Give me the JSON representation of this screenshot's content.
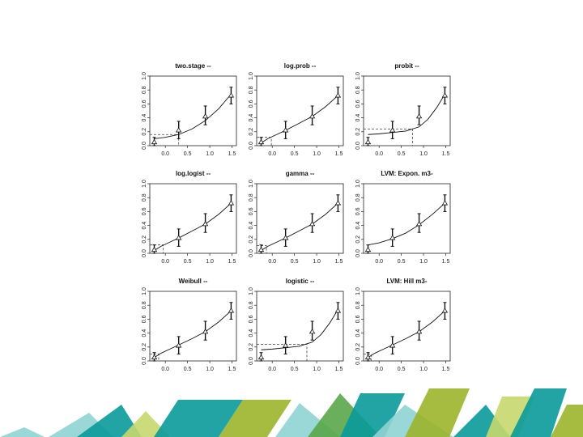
{
  "chart_data": [
    {
      "type": "line",
      "title": "two.stage --",
      "xlim": [
        -0.35,
        1.6
      ],
      "ylim": [
        0,
        1.0
      ],
      "xticks": [
        "0.0",
        "0.5",
        "1.0",
        "1.5"
      ],
      "yticks": [
        "0.0",
        "0.2",
        "0.4",
        "0.6",
        "0.8",
        "1.0"
      ],
      "x_tick_values": [
        0,
        0.5,
        1,
        1.5
      ],
      "y_tick_values": [
        0,
        0.2,
        0.4,
        0.6,
        0.8,
        1.0
      ],
      "observed": {
        "x": [
          -0.25,
          0.3,
          0.9,
          1.48
        ],
        "y": [
          0.05,
          0.22,
          0.42,
          0.72
        ],
        "lower": [
          0.0,
          0.1,
          0.3,
          0.6
        ],
        "upper": [
          0.12,
          0.35,
          0.57,
          0.84
        ]
      },
      "fitted_curve": {
        "x": [
          -0.25,
          0.0,
          0.3,
          0.6,
          0.9,
          1.2,
          1.48
        ],
        "y": [
          0.1,
          0.12,
          0.16,
          0.24,
          0.36,
          0.53,
          0.74
        ]
      },
      "bmd": {
        "bmr_level": 0.16,
        "bmd": 0.3
      }
    },
    {
      "type": "line",
      "title": "log.prob --",
      "xlim": [
        -0.35,
        1.6
      ],
      "ylim": [
        0,
        1.0
      ],
      "xticks": [
        "0.0",
        "0.5",
        "1.0",
        "1.5"
      ],
      "yticks": [
        "0.0",
        "0.2",
        "0.4",
        "0.6",
        "0.8",
        "1.0"
      ],
      "x_tick_values": [
        0,
        0.5,
        1,
        1.5
      ],
      "y_tick_values": [
        0,
        0.2,
        0.4,
        0.6,
        0.8,
        1.0
      ],
      "observed": {
        "x": [
          -0.25,
          0.3,
          0.9,
          1.48
        ],
        "y": [
          0.05,
          0.22,
          0.42,
          0.72
        ],
        "lower": [
          0.0,
          0.1,
          0.3,
          0.6
        ],
        "upper": [
          0.12,
          0.35,
          0.57,
          0.84
        ]
      },
      "fitted_curve": {
        "x": [
          -0.25,
          -0.1,
          0.1,
          0.3,
          0.6,
          0.9,
          1.2,
          1.48
        ],
        "y": [
          0.04,
          0.1,
          0.16,
          0.22,
          0.32,
          0.42,
          0.56,
          0.72
        ]
      },
      "bmd": {
        "bmr_level": 0.12,
        "bmd": -0.02
      }
    },
    {
      "type": "line",
      "title": "probit --",
      "xlim": [
        -0.35,
        1.6
      ],
      "ylim": [
        0,
        1.0
      ],
      "xticks": [
        "0.0",
        "0.5",
        "1.0",
        "1.5"
      ],
      "yticks": [
        "0.0",
        "0.2",
        "0.4",
        "0.6",
        "0.8",
        "1.0"
      ],
      "x_tick_values": [
        0,
        0.5,
        1,
        1.5
      ],
      "y_tick_values": [
        0,
        0.2,
        0.4,
        0.6,
        0.8,
        1.0
      ],
      "observed": {
        "x": [
          -0.25,
          0.3,
          0.9,
          1.48
        ],
        "y": [
          0.05,
          0.22,
          0.42,
          0.72
        ],
        "lower": [
          0.0,
          0.1,
          0.3,
          0.6
        ],
        "upper": [
          0.12,
          0.35,
          0.57,
          0.84
        ]
      },
      "fitted_curve": {
        "x": [
          -0.25,
          0.0,
          0.3,
          0.6,
          0.9,
          1.1,
          1.3,
          1.48
        ],
        "y": [
          0.16,
          0.17,
          0.19,
          0.21,
          0.27,
          0.38,
          0.55,
          0.74
        ]
      },
      "bmd": {
        "bmr_level": 0.24,
        "bmd": 0.75
      }
    },
    {
      "type": "line",
      "title": "log.logist --",
      "xlim": [
        -0.35,
        1.6
      ],
      "ylim": [
        0,
        1.0
      ],
      "xticks": [
        "0.0",
        "0.5",
        "1.0",
        "1.5"
      ],
      "yticks": [
        "0.0",
        "0.2",
        "0.4",
        "0.6",
        "0.8",
        "1.0"
      ],
      "x_tick_values": [
        0,
        0.5,
        1,
        1.5
      ],
      "y_tick_values": [
        0,
        0.2,
        0.4,
        0.6,
        0.8,
        1.0
      ],
      "observed": {
        "x": [
          -0.25,
          0.3,
          0.9,
          1.48
        ],
        "y": [
          0.05,
          0.22,
          0.42,
          0.72
        ],
        "lower": [
          0.0,
          0.1,
          0.3,
          0.6
        ],
        "upper": [
          0.12,
          0.35,
          0.57,
          0.84
        ]
      },
      "fitted_curve": {
        "x": [
          -0.25,
          -0.1,
          0.1,
          0.3,
          0.6,
          0.9,
          1.2,
          1.48
        ],
        "y": [
          0.04,
          0.1,
          0.16,
          0.22,
          0.32,
          0.42,
          0.56,
          0.72
        ]
      },
      "bmd": {
        "bmr_level": 0.12,
        "bmd": -0.05
      }
    },
    {
      "type": "line",
      "title": "gamma --",
      "xlim": [
        -0.35,
        1.6
      ],
      "ylim": [
        0,
        1.0
      ],
      "xticks": [
        "0.0",
        "0.5",
        "1.0",
        "1.5"
      ],
      "yticks": [
        "0.0",
        "0.2",
        "0.4",
        "0.6",
        "0.8",
        "1.0"
      ],
      "x_tick_values": [
        0,
        0.5,
        1,
        1.5
      ],
      "y_tick_values": [
        0,
        0.2,
        0.4,
        0.6,
        0.8,
        1.0
      ],
      "observed": {
        "x": [
          -0.25,
          0.3,
          0.9,
          1.48
        ],
        "y": [
          0.05,
          0.22,
          0.42,
          0.72
        ],
        "lower": [
          0.0,
          0.1,
          0.3,
          0.6
        ],
        "upper": [
          0.12,
          0.35,
          0.57,
          0.84
        ]
      },
      "fitted_curve": {
        "x": [
          -0.25,
          -0.1,
          0.1,
          0.3,
          0.6,
          0.9,
          1.2,
          1.48
        ],
        "y": [
          0.04,
          0.1,
          0.16,
          0.22,
          0.32,
          0.42,
          0.56,
          0.72
        ]
      },
      "bmd": {
        "bmr_level": 0.11,
        "bmd": -0.13
      }
    },
    {
      "type": "line",
      "title": "LVM: Expon. m3-",
      "xlim": [
        -0.35,
        1.6
      ],
      "ylim": [
        0,
        1.0
      ],
      "xticks": [
        "0.0",
        "0.5",
        "1.0",
        "1.5"
      ],
      "yticks": [
        "0.0",
        "0.2",
        "0.4",
        "0.6",
        "0.8",
        "1.0"
      ],
      "x_tick_values": [
        0,
        0.5,
        1,
        1.5
      ],
      "y_tick_values": [
        0,
        0.2,
        0.4,
        0.6,
        0.8,
        1.0
      ],
      "observed": {
        "x": [
          -0.25,
          0.3,
          0.9,
          1.48
        ],
        "y": [
          0.05,
          0.22,
          0.42,
          0.72
        ],
        "lower": [
          0.0,
          0.1,
          0.3,
          0.6
        ],
        "upper": [
          0.12,
          0.35,
          0.57,
          0.84
        ]
      },
      "fitted_curve": {
        "x": [
          -0.25,
          0.0,
          0.3,
          0.6,
          0.9,
          1.2,
          1.48
        ],
        "y": [
          0.12,
          0.15,
          0.21,
          0.29,
          0.41,
          0.56,
          0.72
        ]
      },
      "bmd": null
    },
    {
      "type": "line",
      "title": "Weibull --",
      "xlim": [
        -0.35,
        1.6
      ],
      "ylim": [
        0,
        1.0
      ],
      "xticks": [
        "0.0",
        "0.5",
        "1.0",
        "1.5"
      ],
      "yticks": [
        "0.0",
        "0.2",
        "0.4",
        "0.6",
        "0.8",
        "1.0"
      ],
      "x_tick_values": [
        0,
        0.5,
        1,
        1.5
      ],
      "y_tick_values": [
        0,
        0.2,
        0.4,
        0.6,
        0.8,
        1.0
      ],
      "observed": {
        "x": [
          -0.25,
          0.3,
          0.9,
          1.48
        ],
        "y": [
          0.05,
          0.22,
          0.42,
          0.72
        ],
        "lower": [
          0.0,
          0.1,
          0.3,
          0.6
        ],
        "upper": [
          0.12,
          0.35,
          0.57,
          0.84
        ]
      },
      "fitted_curve": {
        "x": [
          -0.25,
          -0.1,
          0.1,
          0.3,
          0.6,
          0.9,
          1.2,
          1.48
        ],
        "y": [
          0.05,
          0.11,
          0.17,
          0.23,
          0.32,
          0.42,
          0.56,
          0.72
        ]
      },
      "bmd": {
        "bmr_level": 0.1,
        "bmd": -0.15
      }
    },
    {
      "type": "line",
      "title": "logistic --",
      "xlim": [
        -0.35,
        1.6
      ],
      "ylim": [
        0,
        1.0
      ],
      "xticks": [
        "0.0",
        "0.5",
        "1.0",
        "1.5"
      ],
      "yticks": [
        "0.0",
        "0.2",
        "0.4",
        "0.6",
        "0.8",
        "1.0"
      ],
      "x_tick_values": [
        0,
        0.5,
        1,
        1.5
      ],
      "y_tick_values": [
        0,
        0.2,
        0.4,
        0.6,
        0.8,
        1.0
      ],
      "observed": {
        "x": [
          -0.25,
          0.3,
          0.9,
          1.48
        ],
        "y": [
          0.05,
          0.22,
          0.42,
          0.72
        ],
        "lower": [
          0.0,
          0.1,
          0.3,
          0.6
        ],
        "upper": [
          0.12,
          0.35,
          0.57,
          0.84
        ]
      },
      "fitted_curve": {
        "x": [
          -0.25,
          0.0,
          0.3,
          0.6,
          0.9,
          1.1,
          1.3,
          1.48
        ],
        "y": [
          0.16,
          0.17,
          0.19,
          0.21,
          0.27,
          0.38,
          0.55,
          0.74
        ]
      },
      "bmd": {
        "bmr_level": 0.24,
        "bmd": 0.78
      }
    },
    {
      "type": "line",
      "title": "LVM: Hill m3-",
      "xlim": [
        -0.35,
        1.6
      ],
      "ylim": [
        0,
        1.0
      ],
      "xticks": [
        "0.0",
        "0.5",
        "1.0",
        "1.5"
      ],
      "yticks": [
        "0.0",
        "0.2",
        "0.4",
        "0.6",
        "0.8",
        "1.0"
      ],
      "x_tick_values": [
        0,
        0.5,
        1,
        1.5
      ],
      "y_tick_values": [
        0,
        0.2,
        0.4,
        0.6,
        0.8,
        1.0
      ],
      "observed": {
        "x": [
          -0.25,
          0.3,
          0.9,
          1.48
        ],
        "y": [
          0.05,
          0.22,
          0.42,
          0.72
        ],
        "lower": [
          0.0,
          0.1,
          0.3,
          0.6
        ],
        "upper": [
          0.12,
          0.35,
          0.57,
          0.84
        ]
      },
      "fitted_curve": {
        "x": [
          -0.25,
          -0.1,
          0.1,
          0.3,
          0.6,
          0.9,
          1.2,
          1.48
        ],
        "y": [
          0.05,
          0.11,
          0.17,
          0.23,
          0.32,
          0.42,
          0.56,
          0.72
        ]
      },
      "bmd": {
        "bmr_level": 0.1,
        "bmd": -0.18
      }
    }
  ],
  "decoration": {
    "colors": {
      "teal": "#0a9a9a",
      "lime": "#9bb52b",
      "light_teal": "#8fd3d3",
      "light_green": "#c6d86e",
      "mid_green": "#5aa64a"
    }
  }
}
